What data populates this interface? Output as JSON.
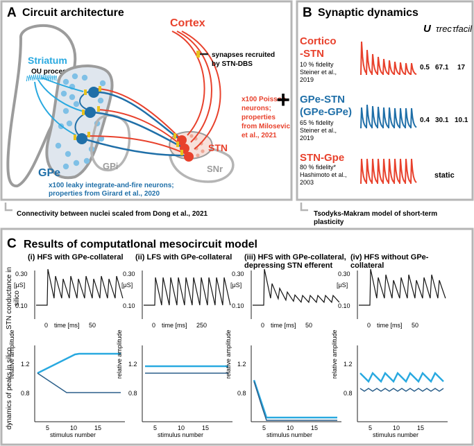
{
  "panel_a": {
    "letter": "A",
    "title": "Circuit architecture",
    "striatum": "Striatum",
    "ou_process": "OU process",
    "cortex": "Cortex",
    "gpe": "GPe",
    "gpi": "GPi",
    "stn": "STN",
    "snr": "SNr",
    "legend": [
      "synapses recruited",
      "by STN-DBS"
    ],
    "poisson_note": [
      "x100 Poisson",
      "neurons;",
      "properties",
      "from Milosevic",
      "et al., 2021"
    ],
    "lif_note": [
      "x100 leaky integrate-and-fire neurons;",
      "properties from Girard et al., 2020"
    ],
    "footer": "Connectivity between nuclei scaled from Dong et al., 2021"
  },
  "plus": "+",
  "panel_b": {
    "letter": "B",
    "title": "Synaptic dynamics",
    "col_u": "U",
    "col_rec": "τrec",
    "col_facil": "τfacil",
    "rows": [
      {
        "name": [
          "Cortico",
          "-STN"
        ],
        "fidelity": "10 % fidelity",
        "ref": [
          "Steiner et al.,",
          "2019"
        ],
        "u": "0.5",
        "rec": "67.1",
        "facil": "17",
        "color": "#e8412c"
      },
      {
        "name": [
          "GPe-STN",
          "(GPe-GPe)"
        ],
        "fidelity": "65 % fidelity",
        "ref": [
          "Steiner et al.,",
          "2019"
        ],
        "u": "0.4",
        "rec": "30.1",
        "facil": "10.1",
        "color": "#1f6fa8"
      },
      {
        "name": [
          "STN-Gpe",
          ""
        ],
        "fidelity": "80 % fidelity*",
        "ref": [
          "Hashimoto et al.,",
          "2003"
        ],
        "static": "static",
        "color": "#e8412c"
      }
    ],
    "footer": [
      "Tsodyks-Makram model of short-term",
      "plasticity"
    ]
  },
  "panel_c": {
    "letter": "C",
    "title": "Results of computatlonal mesocircuit model",
    "ylabel_top": [
      "STN conductance in",
      "silico"
    ],
    "ylabel_bottom": [
      "dynamics of peaks in silico"
    ],
    "unit": "[μS]",
    "rel_amp": "relative amplitude",
    "stimulus": "stimulus number",
    "columns": [
      {
        "title": [
          "(i) HFS with GPe-collateral",
          ""
        ],
        "ticks_y": [
          "0.30",
          "0.10"
        ],
        "time_ticks": [
          "0",
          "time [ms]",
          "50"
        ],
        "bottom_ticks": [
          "1.2",
          "0.8"
        ],
        "x_ticks": [
          "5",
          "10",
          "15"
        ]
      },
      {
        "title": [
          "(ii) LFS with GPe-collateral",
          ""
        ],
        "ticks_y": [
          "0.30",
          "0.10"
        ],
        "time_ticks": [
          "0",
          "time [ms]",
          "250"
        ],
        "bottom_ticks": [
          "1.2",
          "0.8"
        ],
        "x_ticks": [
          "5",
          "10",
          "15"
        ]
      },
      {
        "title": [
          "(iii) HFS with GPe-collateral,",
          "depressing STN efferent"
        ],
        "ticks_y": [
          "0.30",
          "0.10"
        ],
        "time_ticks": [
          "0",
          "time [ms]",
          "50"
        ],
        "bottom_ticks": [
          "1.2",
          "0.8"
        ],
        "x_ticks": [
          "5",
          "10",
          "15"
        ]
      },
      {
        "title": [
          "(iv) HFS without GPe-",
          "collateral"
        ],
        "ticks_y": [
          "0.30",
          "0.10"
        ],
        "time_ticks": [
          "0",
          "time [ms]",
          "50"
        ],
        "bottom_ticks": [
          "1.2",
          "0.8"
        ],
        "x_ticks": [
          "5",
          "10",
          "15"
        ]
      }
    ]
  },
  "colors": {
    "red": "#e8412c",
    "blue": "#1f6fa8",
    "lightblue": "#29a9e0",
    "gray": "#9c9c9c",
    "frame": "#b5b5b5"
  }
}
